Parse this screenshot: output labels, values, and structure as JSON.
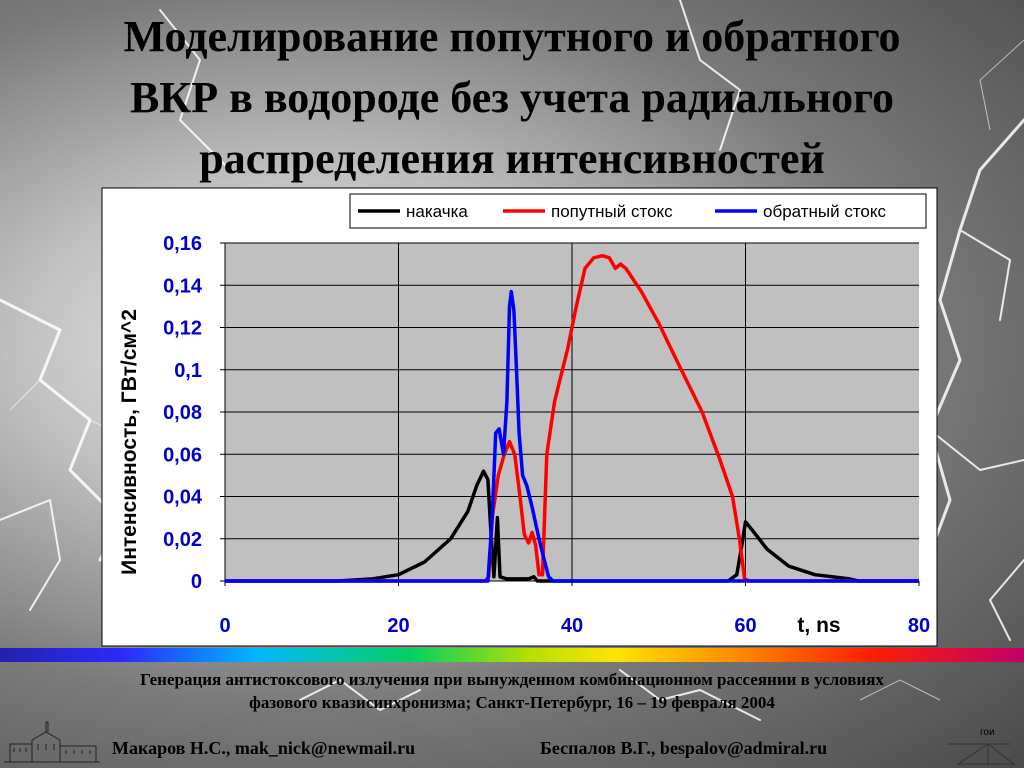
{
  "slide": {
    "title": "Моделирование попутного и обратного\nВКР в водороде без учета радиального\nраспределения интенсивностей",
    "conference": "Генерация антистоксового излучения при вынужденном комбинационном рассеянии в условиях\nфазового квазисинхронизма; Санкт-Петербург, 16 – 19 февраля  2004",
    "author1": "Макаров Н.С., mak_nick@newmail.ru",
    "author2": "Беспалов В.Г., bespalov@admiral.ru",
    "logo_text": "гои"
  },
  "chart_data": {
    "type": "line",
    "xlabel": "t, ns",
    "ylabel": "Интенсивность, ГВт/см^2",
    "xlim": [
      0,
      80
    ],
    "ylim": [
      0,
      0.16
    ],
    "x_ticks": [
      "0",
      "20",
      "40",
      "60",
      "80"
    ],
    "y_ticks": [
      "0",
      "0,02",
      "0,04",
      "0,06",
      "0,08",
      "0,1",
      "0,12",
      "0,14",
      "0,16"
    ],
    "grid": true,
    "legend_position": "top",
    "plot_background": "#c0c0c0",
    "series": [
      {
        "name": "накачка",
        "color": "#000000",
        "points": [
          [
            0,
            0
          ],
          [
            13,
            0
          ],
          [
            17,
            0.001
          ],
          [
            20,
            0.003
          ],
          [
            23,
            0.009
          ],
          [
            26,
            0.02
          ],
          [
            28,
            0.033
          ],
          [
            29,
            0.045
          ],
          [
            29.8,
            0.052
          ],
          [
            30.3,
            0.048
          ],
          [
            30.7,
            0.02
          ],
          [
            31,
            0.002
          ],
          [
            31.4,
            0.03
          ],
          [
            31.7,
            0.002
          ],
          [
            32.5,
            0.001
          ],
          [
            35,
            0.001
          ],
          [
            35.6,
            0.002
          ],
          [
            36,
            0
          ],
          [
            58,
            0
          ],
          [
            59,
            0.003
          ],
          [
            59.7,
            0.02
          ],
          [
            60,
            0.028
          ],
          [
            60.8,
            0.024
          ],
          [
            62.5,
            0.015
          ],
          [
            65,
            0.007
          ],
          [
            68,
            0.003
          ],
          [
            72,
            0.001
          ],
          [
            73,
            0
          ],
          [
            80,
            0
          ]
        ]
      },
      {
        "name": "попутный стокс",
        "color": "#ff0000",
        "points": [
          [
            0,
            0
          ],
          [
            30,
            0
          ],
          [
            30.4,
            0.002
          ],
          [
            30.8,
            0.03
          ],
          [
            31.5,
            0.05
          ],
          [
            32.2,
            0.06
          ],
          [
            32.8,
            0.066
          ],
          [
            33.4,
            0.06
          ],
          [
            34,
            0.04
          ],
          [
            34.5,
            0.022
          ],
          [
            35,
            0.018
          ],
          [
            35.4,
            0.023
          ],
          [
            35.8,
            0.017
          ],
          [
            36.2,
            0.003
          ],
          [
            36.6,
            0.003
          ],
          [
            37.1,
            0.06
          ],
          [
            38,
            0.085
          ],
          [
            39.5,
            0.11
          ],
          [
            40.5,
            0.13
          ],
          [
            41.5,
            0.148
          ],
          [
            42.5,
            0.153
          ],
          [
            43.5,
            0.154
          ],
          [
            44.3,
            0.153
          ],
          [
            45,
            0.148
          ],
          [
            45.6,
            0.15
          ],
          [
            46.2,
            0.148
          ],
          [
            48,
            0.137
          ],
          [
            50,
            0.122
          ],
          [
            52,
            0.105
          ],
          [
            55,
            0.08
          ],
          [
            57,
            0.058
          ],
          [
            58.5,
            0.04
          ],
          [
            59.3,
            0.02
          ],
          [
            59.9,
            0.001
          ],
          [
            60.5,
            0
          ],
          [
            80,
            0
          ]
        ]
      },
      {
        "name": "обратный стокс",
        "color": "#0000ff",
        "points": [
          [
            0,
            0
          ],
          [
            30.3,
            0
          ],
          [
            30.8,
            0.03
          ],
          [
            31.2,
            0.07
          ],
          [
            31.6,
            0.072
          ],
          [
            32.1,
            0.06
          ],
          [
            32.5,
            0.085
          ],
          [
            32.8,
            0.13
          ],
          [
            33,
            0.137
          ],
          [
            33.3,
            0.128
          ],
          [
            33.6,
            0.1
          ],
          [
            33.9,
            0.07
          ],
          [
            34.3,
            0.05
          ],
          [
            34.8,
            0.045
          ],
          [
            35.4,
            0.035
          ],
          [
            36.2,
            0.02
          ],
          [
            36.8,
            0.01
          ],
          [
            37.3,
            0.002
          ],
          [
            37.8,
            0
          ],
          [
            80,
            0
          ]
        ]
      }
    ]
  }
}
